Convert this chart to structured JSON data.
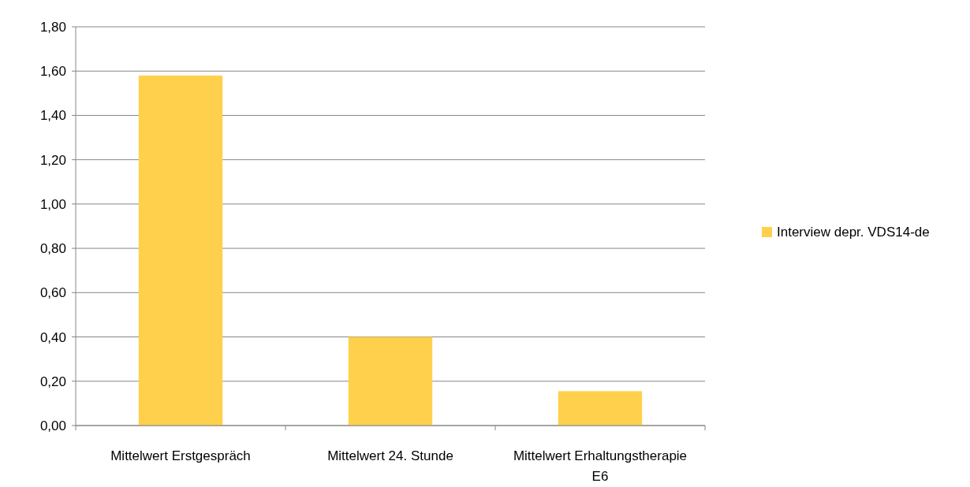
{
  "chart_data": {
    "type": "bar",
    "categories": [
      "Mittelwert Erstgespräch",
      "Mittelwert 24. Stunde",
      "Mittelwert Erhaltungstherapie E6"
    ],
    "series": [
      {
        "name": "Interview depr. VDS14-de",
        "color": "#ffd04b",
        "values": [
          1.58,
          0.4,
          0.155
        ]
      }
    ],
    "ylim": [
      0,
      1.8
    ],
    "yticks": [
      {
        "value": 0,
        "label": "0,00"
      },
      {
        "value": 0.2,
        "label": "0,20"
      },
      {
        "value": 0.4,
        "label": "0,40"
      },
      {
        "value": 0.6,
        "label": "0,60"
      },
      {
        "value": 0.8,
        "label": "0,80"
      },
      {
        "value": 1,
        "label": "1,00"
      },
      {
        "value": 1.2,
        "label": "1,20"
      },
      {
        "value": 1.4,
        "label": "1,40"
      },
      {
        "value": 1.6,
        "label": "1,60"
      },
      {
        "value": 1.8,
        "label": "1,80"
      }
    ],
    "grid": "y",
    "legend": "right"
  }
}
